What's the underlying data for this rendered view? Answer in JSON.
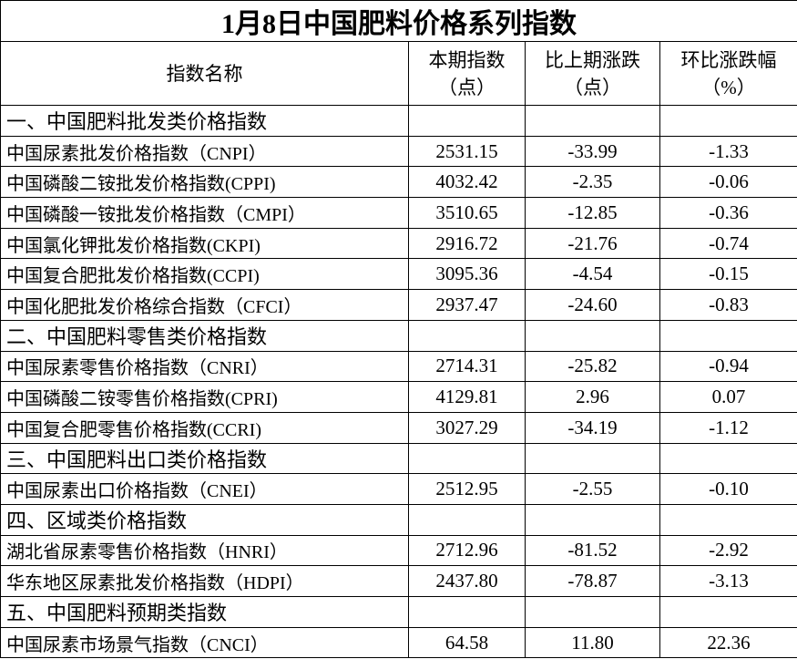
{
  "table": {
    "title": "1月8日中国肥料价格系列指数",
    "header": [
      [
        "指数名称"
      ],
      [
        "本期指数",
        "（点）"
      ],
      [
        "比上期涨跌",
        "（点）"
      ],
      [
        "环比涨跌幅",
        "（%）"
      ]
    ],
    "rows": [
      [
        "一、中国肥料批发类价格指数"
      ],
      [
        "中国尿素批发价格指数（CNPI）",
        "2531.15",
        "-33.99",
        "-1.33"
      ],
      [
        "中国磷酸二铵批发价格指数(CPPI)",
        "4032.42",
        "-2.35",
        "-0.06"
      ],
      [
        "中国磷酸一铵批发价格指数（CMPI）",
        "3510.65",
        "-12.85",
        "-0.36"
      ],
      [
        "中国氯化钾批发价格指数(CKPI)",
        "2916.72",
        "-21.76",
        "-0.74"
      ],
      [
        "中国复合肥批发价格指数(CCPI)",
        "3095.36",
        "-4.54",
        "-0.15"
      ],
      [
        "中国化肥批发价格综合指数（CFCI）",
        "2937.47",
        "-24.60",
        "-0.83"
      ],
      [
        "二、中国肥料零售类价格指数"
      ],
      [
        "中国尿素零售价格指数（CNRI）",
        "2714.31",
        "-25.82",
        "-0.94"
      ],
      [
        "中国磷酸二铵零售价格指数(CPRI)",
        "4129.81",
        "2.96",
        "0.07"
      ],
      [
        "中国复合肥零售价格指数(CCRI)",
        "3027.29",
        "-34.19",
        "-1.12"
      ],
      [
        "三、中国肥料出口类价格指数"
      ],
      [
        "中国尿素出口价格指数（CNEI）",
        "2512.95",
        "-2.55",
        "-0.10"
      ],
      [
        "四、区域类价格指数"
      ],
      [
        "湖北省尿素零售价格指数（HNRI）",
        "2712.96",
        "-81.52",
        "-2.92"
      ],
      [
        "华东地区尿素批发价格指数（HDPI）",
        "2437.80",
        "-78.87",
        "-3.13"
      ],
      [
        "五、中国肥料预期类指数"
      ],
      [
        "中国尿素市场景气指数（CNCI）",
        "64.58",
        "11.80",
        "22.36"
      ]
    ]
  }
}
